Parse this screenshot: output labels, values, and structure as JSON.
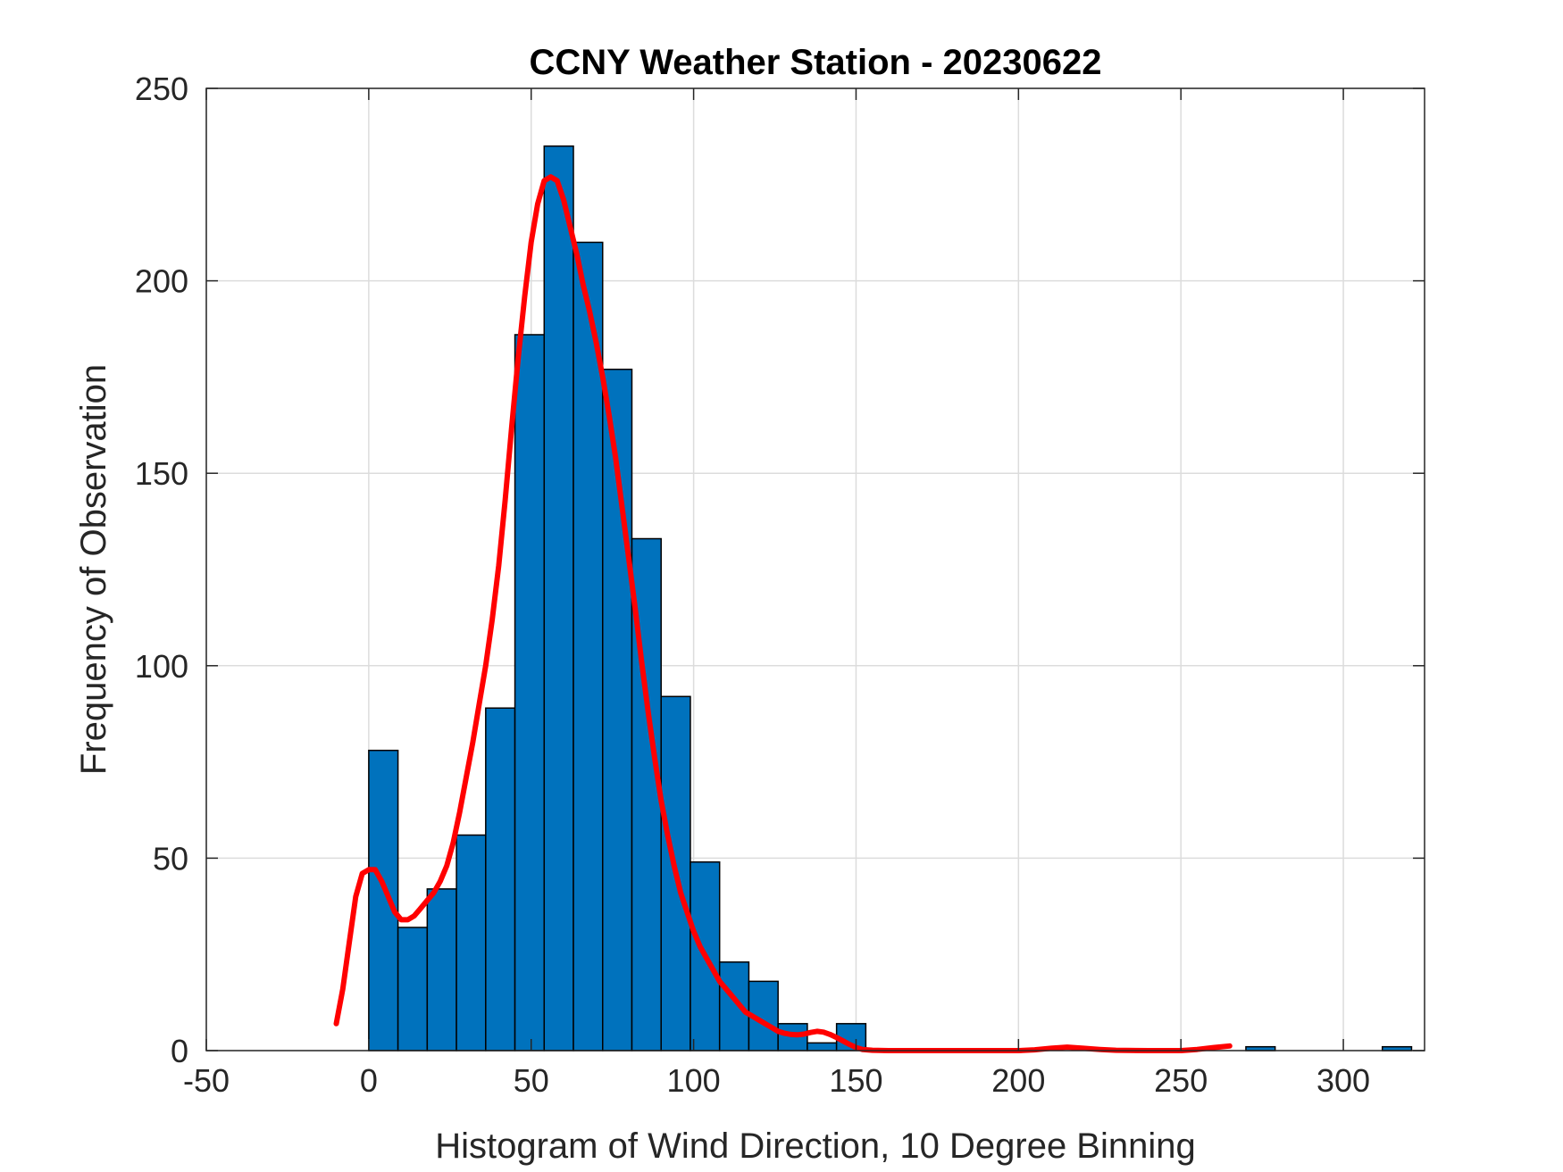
{
  "chart_data": {
    "type": "bar",
    "title": "CCNY Weather Station - 20230622",
    "xlabel": "Histogram of Wind Direction, 10 Degree Binning",
    "ylabel": "Frequency of Observation",
    "xlim": [
      -50,
      325
    ],
    "ylim": [
      0,
      250
    ],
    "xticks": [
      -50,
      0,
      50,
      100,
      150,
      200,
      250,
      300
    ],
    "yticks": [
      0,
      50,
      100,
      150,
      200,
      250
    ],
    "grid": true,
    "bin_width": 9,
    "bar_color": "#0072BD",
    "bar_edge_color": "#000000",
    "bins": [
      {
        "left": 0,
        "value": 78
      },
      {
        "left": 9,
        "value": 32
      },
      {
        "left": 18,
        "value": 42
      },
      {
        "left": 27,
        "value": 56
      },
      {
        "left": 36,
        "value": 89
      },
      {
        "left": 45,
        "value": 186
      },
      {
        "left": 54,
        "value": 235
      },
      {
        "left": 63,
        "value": 210
      },
      {
        "left": 72,
        "value": 177
      },
      {
        "left": 81,
        "value": 133
      },
      {
        "left": 90,
        "value": 92
      },
      {
        "left": 99,
        "value": 49
      },
      {
        "left": 108,
        "value": 23
      },
      {
        "left": 117,
        "value": 18
      },
      {
        "left": 126,
        "value": 7
      },
      {
        "left": 135,
        "value": 2
      },
      {
        "left": 144,
        "value": 7
      },
      {
        "left": 270,
        "value": 1
      },
      {
        "left": 312,
        "value": 1
      }
    ],
    "curve": {
      "color": "#FF0000",
      "x": [
        -10,
        -8,
        -6,
        -4,
        -2,
        0,
        2,
        4,
        6,
        8,
        10,
        12,
        14,
        16,
        18,
        20,
        22,
        24,
        26,
        28,
        30,
        32,
        34,
        36,
        38,
        40,
        42,
        44,
        46,
        48,
        50,
        52,
        54,
        56,
        58,
        60,
        62,
        64,
        66,
        68,
        70,
        72,
        74,
        76,
        78,
        80,
        82,
        84,
        86,
        88,
        90,
        92,
        94,
        96,
        98,
        100,
        102,
        104,
        106,
        108,
        110,
        112,
        114,
        116,
        118,
        120,
        122,
        124,
        126,
        128,
        130,
        132,
        134,
        136,
        138,
        140,
        142,
        144,
        146,
        148,
        150,
        152,
        155,
        160,
        165,
        170,
        180,
        190,
        200,
        205,
        210,
        215,
        220,
        225,
        230,
        240,
        250,
        255,
        260,
        265
      ],
      "y": [
        7,
        16,
        28,
        40,
        46,
        47,
        47,
        44,
        40,
        36,
        34,
        34,
        35,
        37,
        39,
        41,
        44,
        48,
        54,
        62,
        71,
        80,
        90,
        100,
        112,
        126,
        143,
        162,
        180,
        196,
        210,
        220,
        226,
        227,
        226,
        221,
        214,
        207,
        199,
        192,
        184,
        175,
        165,
        154,
        141,
        128,
        115,
        101,
        88,
        76,
        65,
        56,
        48,
        41,
        36,
        31,
        27,
        24,
        21,
        18,
        16,
        14,
        12,
        10,
        9,
        8,
        7,
        6,
        5,
        4.5,
        4.2,
        4.1,
        4.3,
        4.7,
        5,
        4.8,
        4.2,
        3.4,
        2.5,
        1.6,
        0.8,
        0.3,
        0.1,
        0,
        0,
        0,
        0,
        0,
        0,
        0.2,
        0.6,
        0.9,
        0.6,
        0.3,
        0.1,
        0,
        0,
        0.3,
        0.8,
        1.2
      ]
    }
  }
}
